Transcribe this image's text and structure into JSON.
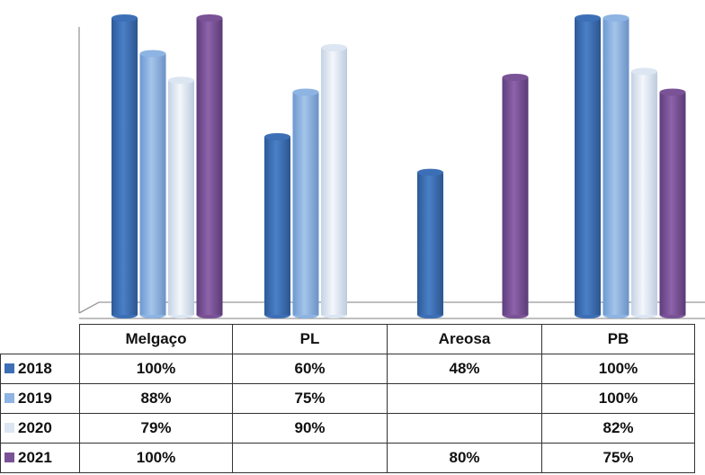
{
  "chart_data": {
    "type": "bar",
    "categories": [
      "Melgaço",
      "PL",
      "Areosa",
      "PB"
    ],
    "series": [
      {
        "name": "2018",
        "values": [
          100,
          60,
          48,
          100
        ],
        "labels": [
          "100%",
          "60%",
          "48%",
          "100%"
        ]
      },
      {
        "name": "2019",
        "values": [
          88,
          75,
          null,
          100
        ],
        "labels": [
          "88%",
          "75%",
          "",
          "100%"
        ]
      },
      {
        "name": "2020",
        "values": [
          79,
          90,
          null,
          82
        ],
        "labels": [
          "79%",
          "90%",
          "",
          "82%"
        ]
      },
      {
        "name": "2021",
        "values": [
          100,
          null,
          80,
          75
        ],
        "labels": [
          "100%",
          "",
          "80%",
          "75%"
        ]
      }
    ],
    "ylim": [
      0,
      100
    ],
    "grid": false,
    "legend": "data-table"
  },
  "colors": {
    "2018": "#3d6fb6",
    "2019": "#8db4e2",
    "2020": "#dce6f2",
    "2021": "#7a5296"
  }
}
